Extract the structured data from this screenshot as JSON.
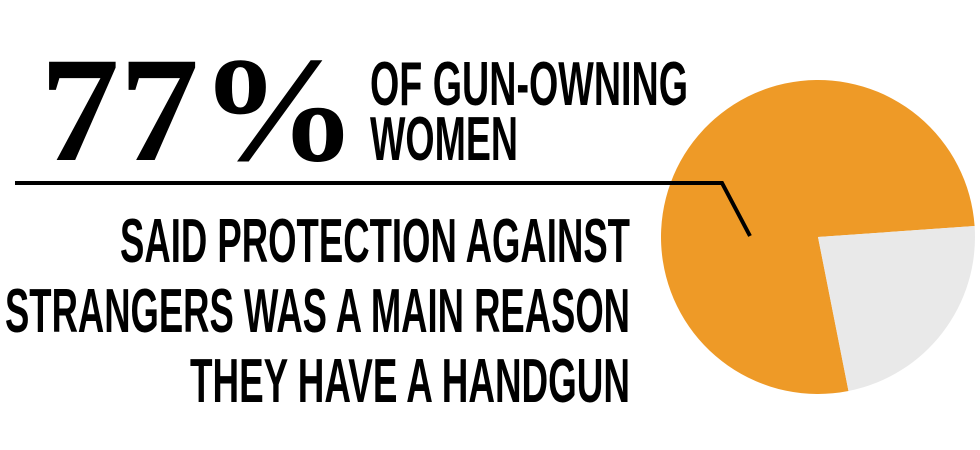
{
  "headline": {
    "stat": "77%",
    "subject_line1": "OF GUN-OWNING",
    "subject_line2": "WOMEN"
  },
  "caption": {
    "line1": "SAID PROTECTION AGAINST",
    "line2": "STRANGERS WAS A MAIN REASON",
    "line3": "THEY HAVE A HANDGUN"
  },
  "chart_data": {
    "type": "pie",
    "slices": [
      {
        "value": 77,
        "color": "#EE9A27"
      },
      {
        "value": 23,
        "color": "#E9E9E9"
      }
    ],
    "legend": "none",
    "annotation": "leader line from the text block to the 77% slice"
  },
  "colors": {
    "text": "#000000",
    "background": "#FFFFFF"
  }
}
